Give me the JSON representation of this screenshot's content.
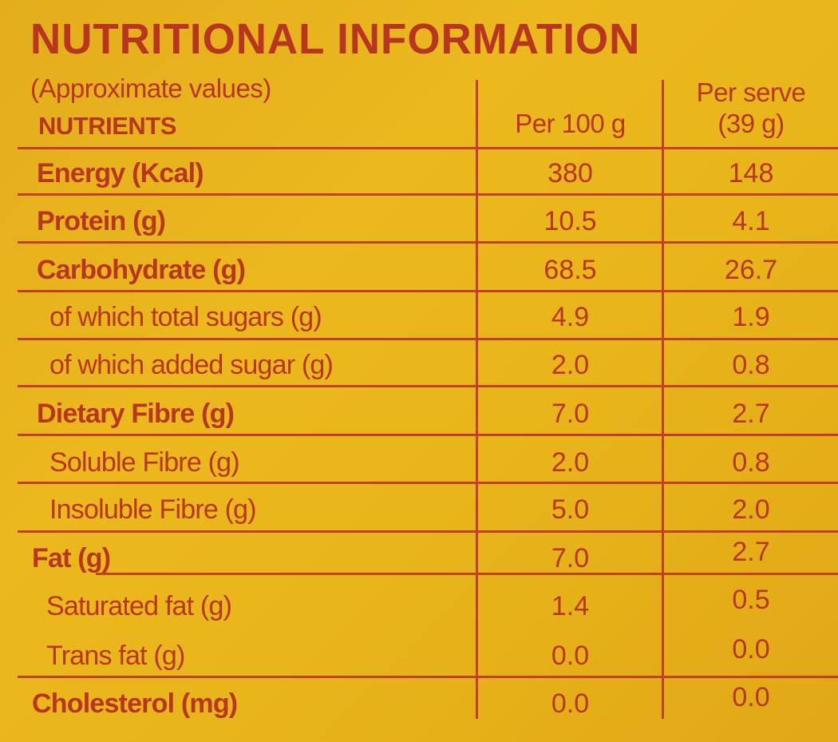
{
  "title": "NUTRITIONAL INFORMATION",
  "subtitle": "(Approximate values)",
  "headers": {
    "nutrients": "NUTRIENTS",
    "per100": "Per 100 g",
    "perServeLine1": "Per serve",
    "perServeLine2": "(39 g)"
  },
  "rows": [
    {
      "label": "Energy (Kcal)",
      "per100": "380",
      "perServe": "148"
    },
    {
      "label": "Protein (g)",
      "per100": "10.5",
      "perServe": "4.1"
    },
    {
      "label": "Carbohydrate (g)",
      "per100": "68.5",
      "perServe": "26.7"
    },
    {
      "label": "of which total sugars (g)",
      "per100": "4.9",
      "perServe": "1.9"
    },
    {
      "label": "of which added sugar (g)",
      "per100": "2.0",
      "perServe": "0.8"
    },
    {
      "label": "Dietary Fibre (g)",
      "per100": "7.0",
      "perServe": "2.7"
    },
    {
      "label": "Soluble Fibre (g)",
      "per100": "2.0",
      "perServe": "0.8"
    },
    {
      "label": "Insoluble Fibre (g)",
      "per100": "5.0",
      "perServe": "2.0"
    },
    {
      "label": "Fat (g)",
      "per100": "7.0",
      "perServe": "2.7"
    },
    {
      "label": "Saturated fat (g)",
      "per100": "1.4",
      "perServe": "0.5"
    },
    {
      "label": "Trans fat (g)",
      "per100": "0.0",
      "perServe": "0.0"
    },
    {
      "label": "Cholesterol (mg)",
      "per100": "0.0",
      "perServe": "0.0"
    }
  ]
}
